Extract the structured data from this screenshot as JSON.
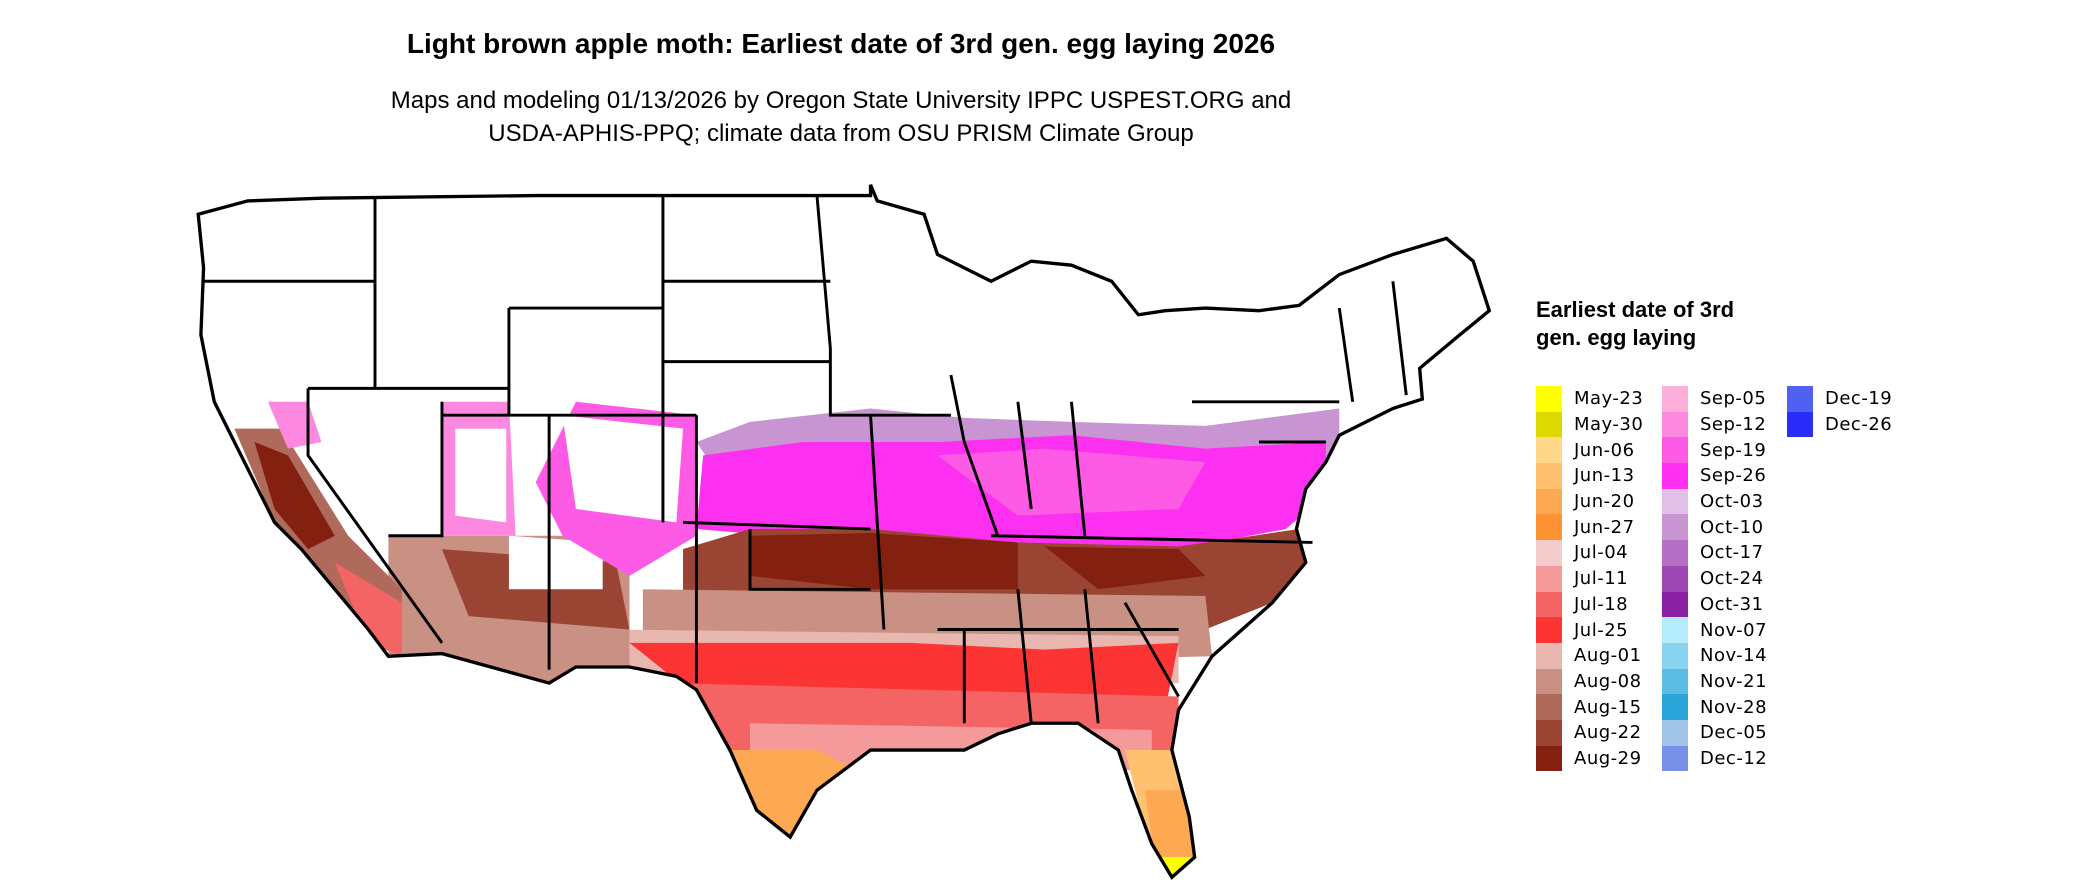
{
  "title": "Light brown apple moth: Earliest date of 3rd gen. egg laying 2026",
  "subtitle_line1": "Maps and modeling 01/13/2026 by Oregon State University IPPC USPEST.ORG and",
  "subtitle_line2": "USDA-APHIS-PPQ; climate data from OSU PRISM Climate Group",
  "chart_data": {
    "type": "heatmap",
    "legend_title": "Earliest date of 3rd gen. egg laying",
    "legend_placement": "right",
    "legend": [
      {
        "label": "May-23",
        "color": "#ffff00"
      },
      {
        "label": "May-30",
        "color": "#dcd800"
      },
      {
        "label": "Jun-06",
        "color": "#ffd68a"
      },
      {
        "label": "Jun-13",
        "color": "#ffc070"
      },
      {
        "label": "Jun-20",
        "color": "#fda852"
      },
      {
        "label": "Jun-27",
        "color": "#fd9332"
      },
      {
        "label": "Jul-04",
        "color": "#f5cccc"
      },
      {
        "label": "Jul-11",
        "color": "#f49a9a"
      },
      {
        "label": "Jul-18",
        "color": "#f56464"
      },
      {
        "label": "Jul-25",
        "color": "#fc3434"
      },
      {
        "label": "Aug-01",
        "color": "#e8b8b0"
      },
      {
        "label": "Aug-08",
        "color": "#c99084"
      },
      {
        "label": "Aug-15",
        "color": "#b06a5c"
      },
      {
        "label": "Aug-22",
        "color": "#9a4534"
      },
      {
        "label": "Aug-29",
        "color": "#84200f"
      },
      {
        "label": "Sep-05",
        "color": "#fcafd8"
      },
      {
        "label": "Sep-12",
        "color": "#fd88e0"
      },
      {
        "label": "Sep-19",
        "color": "#fd5ae6"
      },
      {
        "label": "Sep-26",
        "color": "#fd2ff0"
      },
      {
        "label": "Oct-03",
        "color": "#e0c0e6"
      },
      {
        "label": "Oct-10",
        "color": "#c894d2"
      },
      {
        "label": "Oct-17",
        "color": "#b46ec4"
      },
      {
        "label": "Oct-24",
        "color": "#9e48b4"
      },
      {
        "label": "Oct-31",
        "color": "#8a20a4"
      },
      {
        "label": "Nov-07",
        "color": "#b4ecfc"
      },
      {
        "label": "Nov-14",
        "color": "#88d4f0"
      },
      {
        "label": "Nov-21",
        "color": "#5cbce4"
      },
      {
        "label": "Nov-28",
        "color": "#2aa4d8"
      },
      {
        "label": "Dec-05",
        "color": "#a0c4e8"
      },
      {
        "label": "Dec-12",
        "color": "#7890e8"
      },
      {
        "label": "Dec-19",
        "color": "#5060f0"
      },
      {
        "label": "Dec-26",
        "color": "#2a2cfa"
      }
    ]
  }
}
